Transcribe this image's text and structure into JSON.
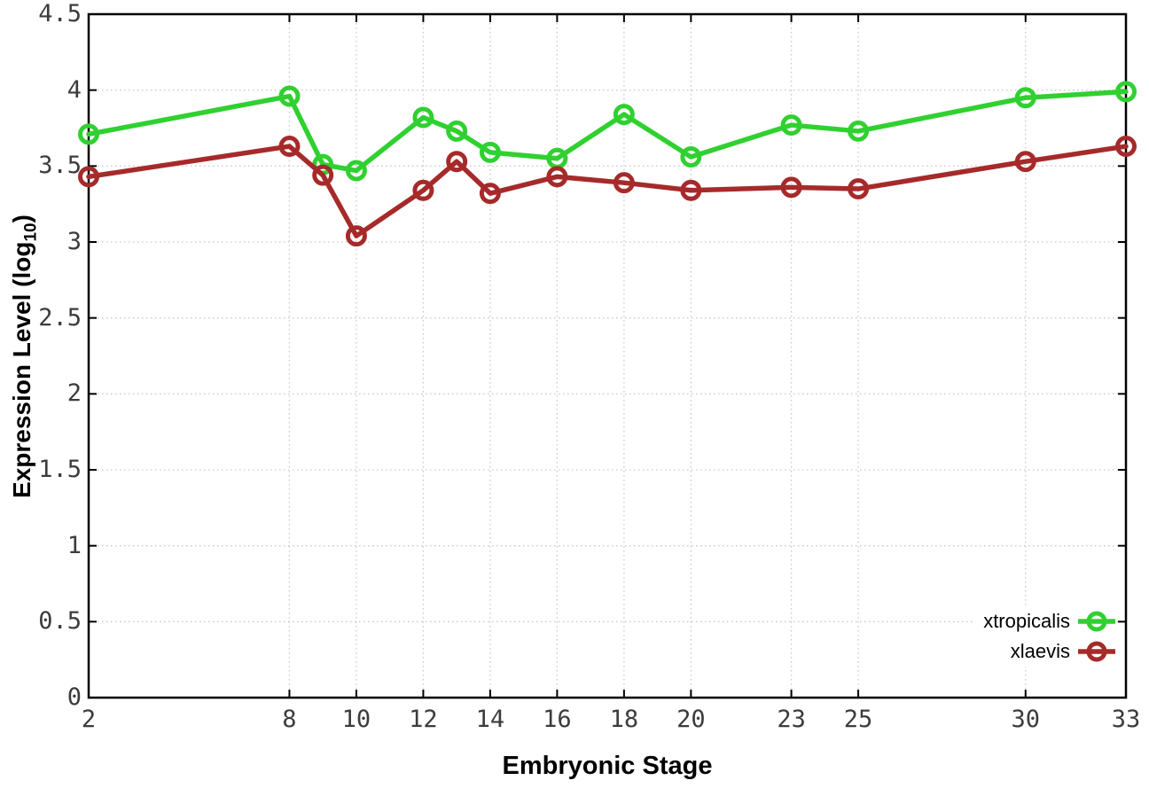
{
  "figure": {
    "background": "#ffffff"
  },
  "chart_data": {
    "type": "line",
    "title": "",
    "xlabel": "Embryonic Stage",
    "ylabel": "Expression Level (log10)",
    "ylabel_parts": {
      "prefix": "Expression Level (log",
      "sub": "10",
      "suffix": ")"
    },
    "x": [
      2,
      8,
      9,
      10,
      12,
      13,
      14,
      16,
      18,
      20,
      23,
      25,
      30,
      33
    ],
    "series": [
      {
        "name": "xtropicalis",
        "color": "#30d030",
        "values": [
          3.71,
          3.96,
          3.51,
          3.47,
          3.82,
          3.73,
          3.59,
          3.55,
          3.84,
          3.56,
          3.77,
          3.73,
          3.95,
          3.99
        ]
      },
      {
        "name": "xlaevis",
        "color": "#a62a2a",
        "values": [
          3.43,
          3.63,
          3.44,
          3.04,
          3.34,
          3.53,
          3.32,
          3.43,
          3.39,
          3.34,
          3.36,
          3.35,
          3.53,
          3.63
        ]
      }
    ],
    "xlim": [
      2,
      33
    ],
    "ylim": [
      0,
      4.5
    ],
    "xticks": {
      "values": [
        2,
        8,
        10,
        12,
        14,
        16,
        18,
        20,
        23,
        25,
        30,
        33
      ],
      "labels": [
        "2",
        "8",
        "10",
        "12",
        "14",
        "16",
        "18",
        "20",
        "23",
        "25",
        "30",
        "33"
      ]
    },
    "yticks": {
      "values": [
        0,
        0.5,
        1,
        1.5,
        2,
        2.5,
        3,
        3.5,
        4,
        4.5
      ],
      "labels": [
        "0",
        "0.5",
        "1",
        "1.5",
        "2",
        "2.5",
        "3",
        "3.5",
        "4",
        "4.5"
      ]
    },
    "grid": true,
    "grid_style": "dotted",
    "grid_color": "#c8c8c8",
    "axis_color": "#000000",
    "tick_label_color": "#3c3c3c",
    "marker": "open-circle",
    "legend_position": "bottom-right"
  }
}
